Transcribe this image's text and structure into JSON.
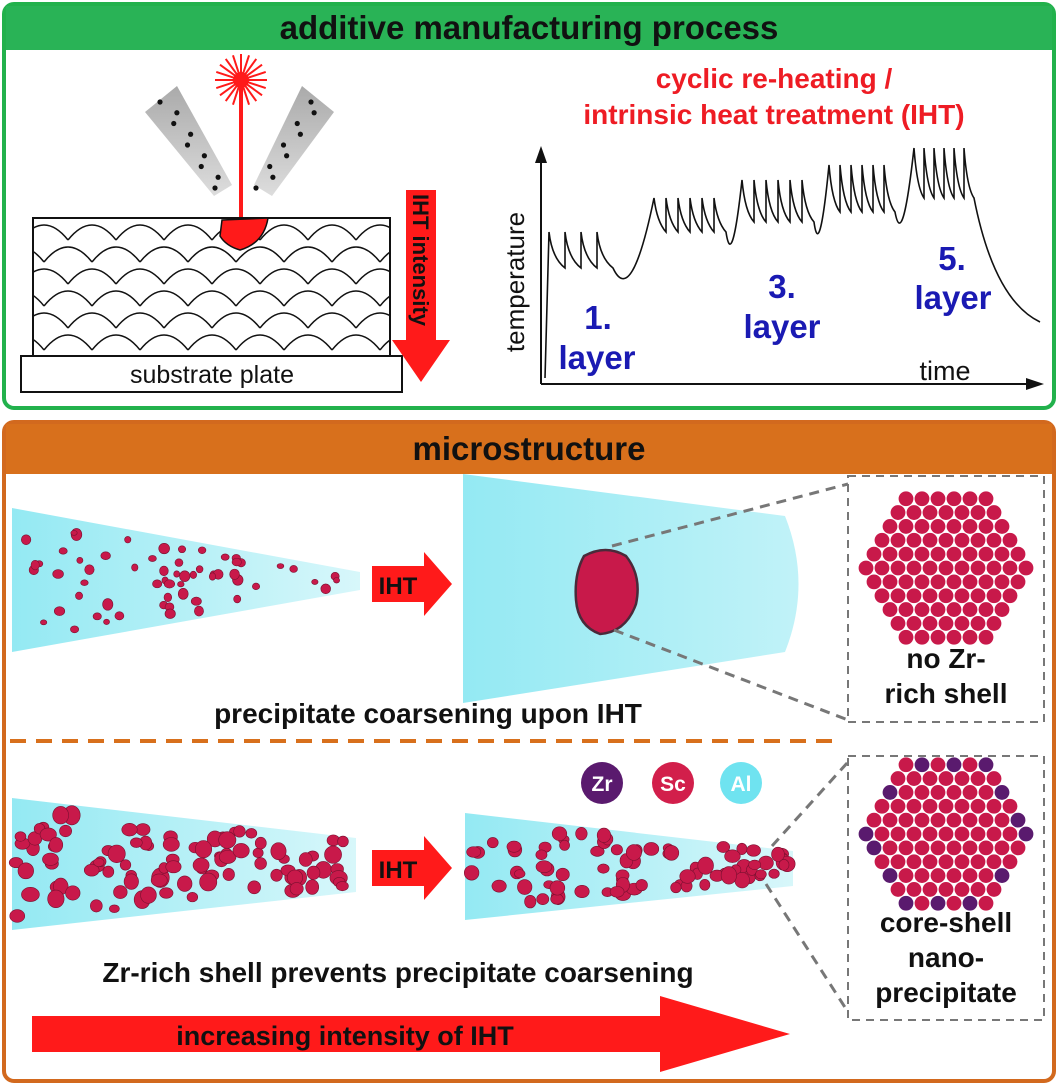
{
  "top_panel": {
    "title": "additive manufacturing process",
    "substrate_label": "substrate plate",
    "ihtint_label": "IHT intensity",
    "chart_caption_line1": "cyclic re-heating /",
    "chart_caption_line2": "intrinsic heat treatment (IHT)",
    "ylabel": "temperature",
    "xlabel": "time",
    "layer_labels": [
      {
        "num": "1.",
        "word": "layer"
      },
      {
        "num": "3.",
        "word": "layer"
      },
      {
        "num": "5.",
        "word": "layer"
      }
    ]
  },
  "bottom_panel": {
    "title": "microstructure",
    "row1_caption": "precipitate coarsening upon IHT",
    "row1_arrow_label": "IHT",
    "row1_box_line1": "no Zr-",
    "row1_box_line2": "rich shell",
    "row2_caption": "Zr-rich shell prevents precipitate coarsening",
    "row2_arrow_label": "IHT",
    "row2_box_line1": "core-shell",
    "row2_box_line2": "nano-",
    "row2_box_line3": "precipitate",
    "legend": [
      {
        "label": "Zr",
        "color": "#5a1a6e"
      },
      {
        "label": "Sc",
        "color": "#d21f4b"
      },
      {
        "label": "Al",
        "color": "#6fe3f0"
      }
    ],
    "bottom_arrow_label": "increasing intensity of IHT"
  },
  "colors": {
    "green": "#29b356",
    "orange": "#d8701c",
    "red": "#ff1a1a",
    "blue": "#1a1ab3",
    "particle": "#c8194a",
    "cyan": "#8ee8f2"
  }
}
